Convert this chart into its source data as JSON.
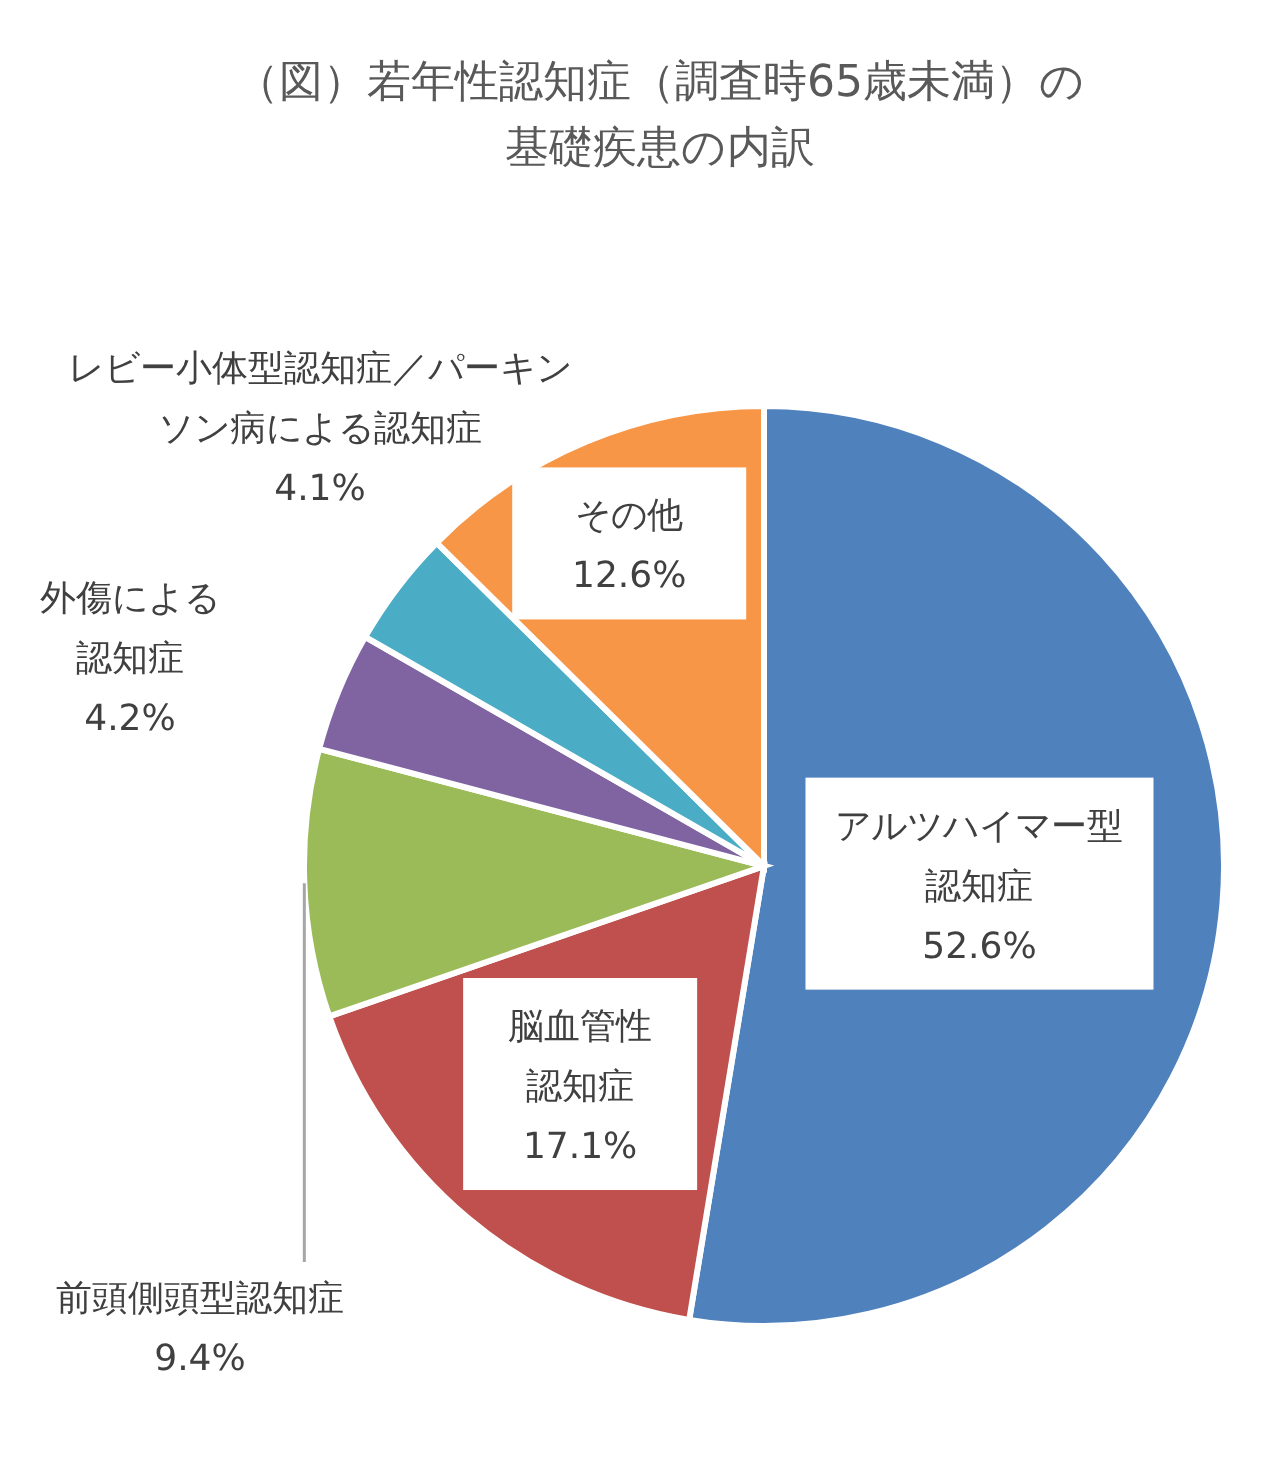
{
  "chart_data": {
    "type": "pie",
    "title": "（図）若年性認知症（調査時65歳未満）の基礎疾患の内訳",
    "categories": [
      "アルツハイマー型認知症",
      "脳血管性認知症",
      "前頭側頭型認知症",
      "外傷による認知症",
      "レビー小体型認知症／パーキンソン病による認知症",
      "その他"
    ],
    "values": [
      52.6,
      17.1,
      9.4,
      4.2,
      4.1,
      12.6
    ],
    "value_labels": [
      "52.6%",
      "17.1%",
      "9.4%",
      "4.2%",
      "4.1%",
      "12.6%"
    ],
    "colors": [
      "#4f81bd",
      "#c0504d",
      "#9bbb59",
      "#8064a2",
      "#4bacc6",
      "#f79646"
    ]
  }
}
